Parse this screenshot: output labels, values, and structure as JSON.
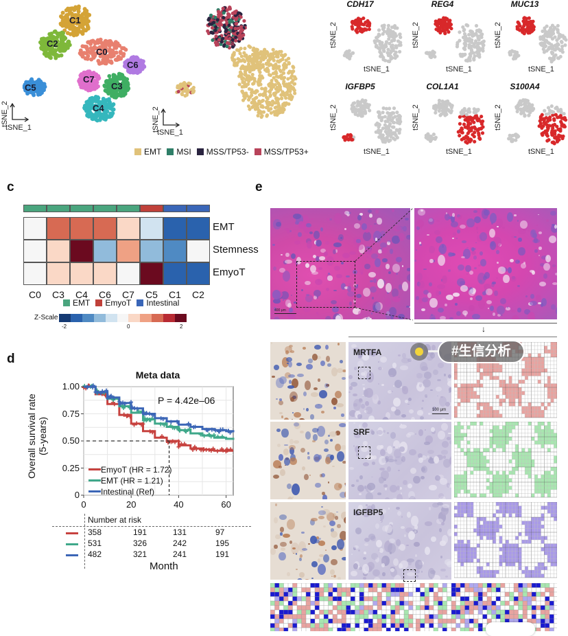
{
  "panel_a": {
    "clusters": [
      "C1",
      "C2",
      "C0",
      "C6",
      "C5",
      "C7",
      "C3",
      "C4"
    ],
    "colors": {
      "C0": "#e8806f",
      "C1": "#d4a336",
      "C2": "#7eb83a",
      "C3": "#3fae63",
      "C4": "#35b7bd",
      "C5": "#3a8fd8",
      "C6": "#b07ae2",
      "C7": "#e06fcc"
    },
    "axis_x": "tSNE_1",
    "axis_y": "tSNE_2"
  },
  "panel_b": {
    "axis_x": "tSNE_1",
    "axis_y": "tSNE_2",
    "legend": [
      {
        "label": "EMT",
        "color": "#e0c27a"
      },
      {
        "label": "MSI",
        "color": "#2f7f68"
      },
      {
        "label": "MSS/TP53-",
        "color": "#2a2440"
      },
      {
        "label": "MSS/TP53+",
        "color": "#b8435a"
      }
    ]
  },
  "panel_genes": {
    "axis_x": "tSNE_1",
    "axis_y": "tSNE_2",
    "genes": [
      "CDH17",
      "REG4",
      "MUC13",
      "IGFBP5",
      "COL1A1",
      "S100A4"
    ],
    "high_color": "#d8282a",
    "low_color": "#c9c9c9"
  },
  "panel_c": {
    "letter": "c",
    "chart_data": {
      "type": "heatmap",
      "rows": [
        "EMT",
        "Stemness",
        "EmyoT"
      ],
      "columns": [
        "C0",
        "C3",
        "C4",
        "C6",
        "C7",
        "C5",
        "C1",
        "C2"
      ],
      "column_groups": [
        "EMT",
        "EMT",
        "EMT",
        "EMT",
        "EMT",
        "EmyoT",
        "Intestinal",
        "Intestinal"
      ],
      "values": [
        [
          0,
          1.3,
          1.3,
          1.3,
          0.4,
          -0.4,
          -1.7,
          -1.7
        ],
        [
          0,
          0.4,
          2.0,
          -0.7,
          0.8,
          -0.7,
          -1.1,
          0
        ],
        [
          0,
          0.4,
          0.4,
          0.4,
          0,
          2.0,
          -1.7,
          -1.7
        ]
      ],
      "group_legend": [
        {
          "label": "EMT",
          "color": "#4aa57e"
        },
        {
          "label": "EmyoT",
          "color": "#c0413a"
        },
        {
          "label": "Intestinal",
          "color": "#3a66b8"
        }
      ],
      "scale_label": "Z-Scale",
      "scale_ticks": [
        "-2",
        "0",
        "2"
      ],
      "scale_range": [
        -2,
        2
      ],
      "scale_colors": [
        "#153a73",
        "#2a62ad",
        "#4f8ac3",
        "#91bbdb",
        "#d1e3f0",
        "#f6f6f6",
        "#fad8c6",
        "#efa184",
        "#d76a53",
        "#b82a33",
        "#6b0a1f"
      ]
    }
  },
  "panel_d": {
    "letter": "d",
    "chart_data": {
      "type": "line",
      "title": "Meta data",
      "xlabel": "Month",
      "ylabel": "Overall survival rate\n(5-years)",
      "ylabel_line1": "Overall survival rate",
      "ylabel_line2": "(5-years)",
      "xlim": [
        0,
        63
      ],
      "ylim": [
        0,
        1.0
      ],
      "x_ticks": [
        "0",
        "20",
        "40",
        "60"
      ],
      "y_ticks": [
        "0",
        "0.25",
        "0.50",
        "0.75",
        "1.00"
      ],
      "annotation": "P = 4.42e–06",
      "median_line": {
        "y": 0.5,
        "x": 36
      },
      "series": [
        {
          "name": "EmyoT (HR = 1.72)",
          "color": "#c7423f",
          "x": [
            0,
            5,
            10,
            15,
            20,
            25,
            30,
            35,
            40,
            45,
            50,
            55,
            60,
            63
          ],
          "y": [
            1.0,
            0.93,
            0.84,
            0.74,
            0.66,
            0.59,
            0.53,
            0.5,
            0.46,
            0.43,
            0.42,
            0.41,
            0.41,
            0.41
          ]
        },
        {
          "name": "EMT (HR = 1.21)",
          "color": "#3fa88a",
          "x": [
            0,
            5,
            10,
            15,
            20,
            25,
            30,
            35,
            40,
            45,
            50,
            55,
            60,
            63
          ],
          "y": [
            1.0,
            0.95,
            0.89,
            0.82,
            0.76,
            0.7,
            0.66,
            0.63,
            0.6,
            0.57,
            0.55,
            0.53,
            0.52,
            0.51
          ]
        },
        {
          "name": "Intestinal (Ref)",
          "color": "#3c66b6",
          "x": [
            0,
            5,
            10,
            15,
            20,
            25,
            30,
            35,
            40,
            45,
            50,
            55,
            60,
            63
          ],
          "y": [
            1.0,
            0.95,
            0.9,
            0.85,
            0.8,
            0.75,
            0.71,
            0.68,
            0.65,
            0.63,
            0.61,
            0.6,
            0.59,
            0.58
          ]
        }
      ],
      "risk_table": {
        "title": "Number at risk",
        "rows": [
          {
            "color": "#c7423f",
            "values": [
              "358",
              "191",
              "131",
              "97"
            ]
          },
          {
            "color": "#3fa88a",
            "values": [
              "531",
              "326",
              "242",
              "195"
            ]
          },
          {
            "color": "#3c66b6",
            "values": [
              "482",
              "321",
              "241",
              "191"
            ]
          }
        ]
      }
    }
  },
  "panel_e": {
    "letter": "e",
    "scale_bar_he": "400 μm",
    "scale_bar_ihc": "100 μm",
    "stains": [
      {
        "label": "MRTFA",
        "grid_color": "#e8a3a0"
      },
      {
        "label": "SRF",
        "grid_color": "#a8e6b0"
      },
      {
        "label": "IGFBP5",
        "grid_color": "#a99ae8"
      }
    ],
    "merge_colors": [
      "#1a1ad0",
      "#e8a3a0",
      "#a8e6b0",
      "#b0a8ee"
    ]
  },
  "watermark": {
    "text": "#生信分析",
    "dot_color": "#f2d43a"
  }
}
